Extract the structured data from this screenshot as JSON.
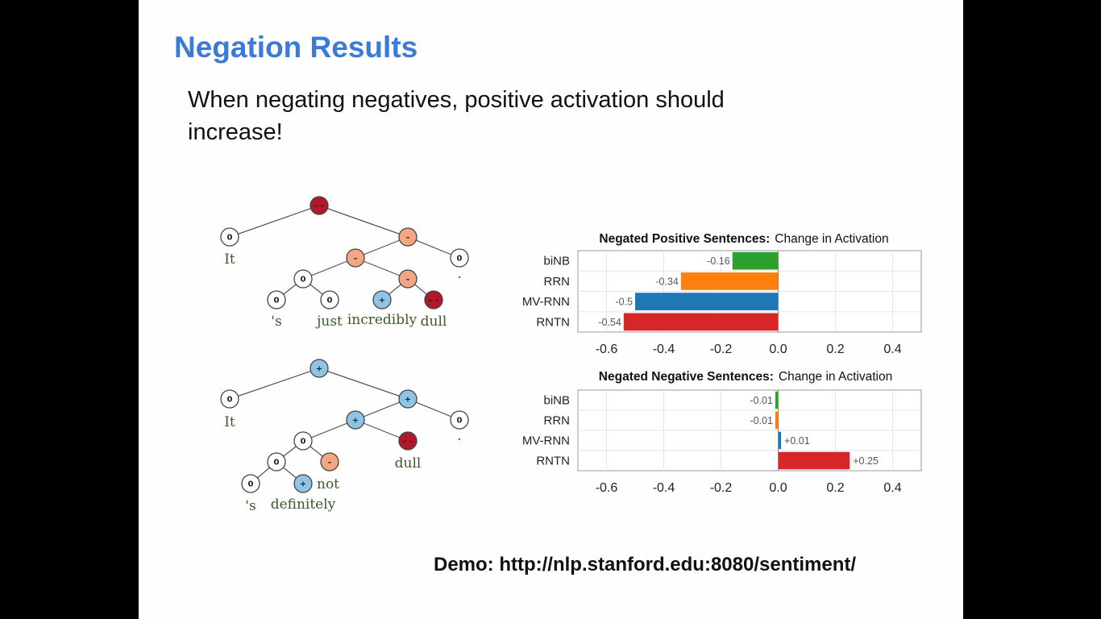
{
  "slide": {
    "title": "Negation Results",
    "body": "When negating negatives, positive activation should increase!",
    "demo": "Demo: http://nlp.stanford.edu:8080/sentiment/"
  },
  "trees": {
    "tree1": {
      "words": [
        "It",
        "'s",
        "just",
        "incredibly",
        "dull",
        "."
      ]
    },
    "tree2": {
      "words": [
        "It",
        "'s",
        "definitely",
        "not",
        "dull",
        "."
      ]
    },
    "node_symbols": {
      "neutral": "0",
      "positive": "+",
      "negative": "–",
      "very_negative": "– –"
    },
    "colors": {
      "neutral": "#ffffff",
      "positive": "#8ec5e6",
      "negative": "#f4a582",
      "very_negative": "#b2182b"
    }
  },
  "chart_data": [
    {
      "type": "bar",
      "orientation": "horizontal",
      "title_bold": "Negated Positive Sentences:",
      "title_rest": "Change in Activation",
      "categories": [
        "biNB",
        "RRN",
        "MV-RNN",
        "RNTN"
      ],
      "values": [
        -0.16,
        -0.34,
        -0.5,
        -0.54
      ],
      "value_labels": [
        "-0.16",
        "-0.34",
        "-0.5",
        "-0.54"
      ],
      "colors": [
        "#2ca02c",
        "#ff7f0e",
        "#1f77b4",
        "#d62728"
      ],
      "xlim": [
        -0.7,
        0.5
      ],
      "xticks": [
        -0.6,
        -0.4,
        -0.2,
        0.0,
        0.2,
        0.4
      ],
      "xtick_labels": [
        "-0.6",
        "-0.4",
        "-0.2",
        "0.0",
        "0.2",
        "0.4"
      ],
      "grid": true
    },
    {
      "type": "bar",
      "orientation": "horizontal",
      "title_bold": "Negated Negative Sentences:",
      "title_rest": "Change in Activation",
      "categories": [
        "biNB",
        "RRN",
        "MV-RNN",
        "RNTN"
      ],
      "values": [
        -0.01,
        -0.01,
        0.01,
        0.25
      ],
      "value_labels": [
        "-0.01",
        "-0.01",
        "+0.01",
        "+0.25"
      ],
      "colors": [
        "#2ca02c",
        "#ff7f0e",
        "#1f77b4",
        "#d62728"
      ],
      "xlim": [
        -0.7,
        0.5
      ],
      "xticks": [
        -0.6,
        -0.4,
        -0.2,
        0.0,
        0.2,
        0.4
      ],
      "xtick_labels": [
        "-0.6",
        "-0.4",
        "-0.2",
        "0.0",
        "0.2",
        "0.4"
      ],
      "grid": true
    }
  ]
}
